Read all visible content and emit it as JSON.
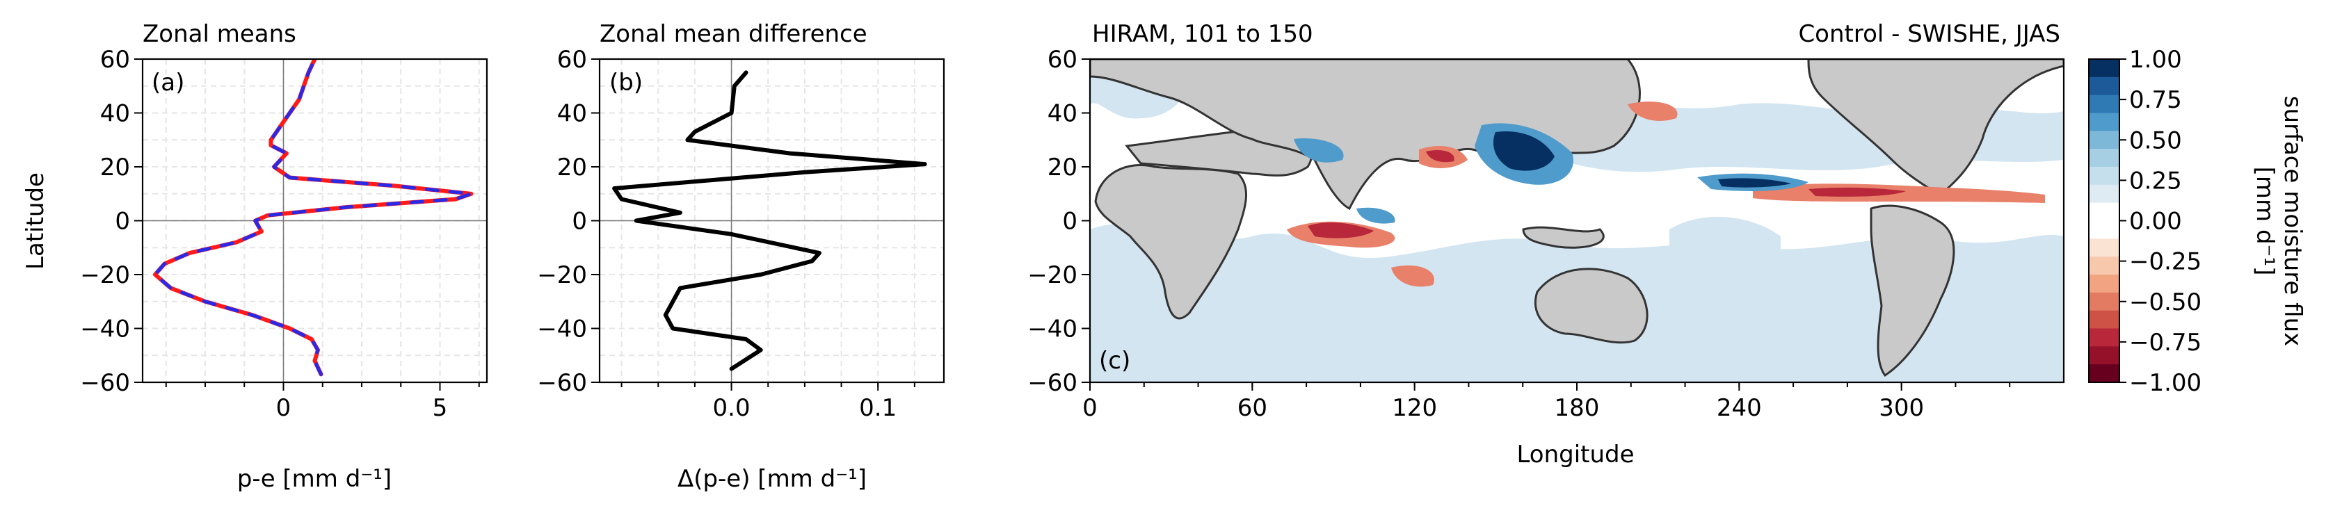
{
  "chart_data": [
    {
      "type": "line",
      "panel_label": "(a)",
      "title": "Zonal means",
      "xlabel": "p-e [mm d⁻¹]",
      "ylabel": "Latitude",
      "xlim": [
        -4.5,
        6.5
      ],
      "ylim": [
        -60,
        60
      ],
      "xticks": [
        0,
        5
      ],
      "yticks": [
        -60,
        -40,
        -20,
        0,
        20,
        40,
        60
      ],
      "grid": true,
      "series": [
        {
          "color": "#ff1a1a",
          "style": "solid",
          "x": [
            1.2,
            1.0,
            1.1,
            0.9,
            0.2,
            -1.0,
            -2.5,
            -3.6,
            -4.1,
            -3.8,
            -3.0,
            -1.5,
            -0.7,
            -0.9,
            -0.5,
            2.0,
            5.5,
            6.0,
            3.5,
            0.2,
            -0.3,
            0.1,
            -0.4,
            -0.4,
            -0.1,
            0.5,
            0.8,
            1.0
          ],
          "y": [
            -57,
            -52,
            -48,
            -44,
            -40,
            -35,
            -30,
            -25,
            -20,
            -16,
            -12,
            -8,
            -4,
            0,
            2,
            5,
            8,
            10,
            13,
            16,
            20,
            25,
            28,
            30,
            35,
            45,
            55,
            60
          ]
        },
        {
          "color": "#2a2ae6",
          "style": "dashed",
          "x": [
            1.2,
            1.0,
            1.1,
            0.9,
            0.2,
            -1.0,
            -2.5,
            -3.6,
            -4.1,
            -3.8,
            -3.0,
            -1.5,
            -0.7,
            -0.9,
            -0.5,
            2.0,
            5.5,
            6.0,
            3.5,
            0.2,
            -0.3,
            0.1,
            -0.4,
            -0.4,
            -0.1,
            0.5,
            0.8,
            1.0
          ],
          "y": [
            -57,
            -52,
            -48,
            -44,
            -40,
            -35,
            -30,
            -25,
            -20,
            -16,
            -12,
            -8,
            -4,
            0,
            2,
            5,
            8,
            10,
            13,
            16,
            20,
            25,
            28,
            30,
            35,
            45,
            55,
            60
          ]
        }
      ]
    },
    {
      "type": "line",
      "panel_label": "(b)",
      "title": "Zonal mean difference",
      "xlabel": "Δ(p-e) [mm d⁻¹]",
      "xlim": [
        -0.09,
        0.145
      ],
      "ylim": [
        -60,
        60
      ],
      "xticks": [
        0.0,
        0.1
      ],
      "xticklabels": [
        "0.0",
        "0.1"
      ],
      "yticks": [
        -60,
        -40,
        -20,
        0,
        20,
        40,
        60
      ],
      "grid": true,
      "series": [
        {
          "color": "#000000",
          "style": "solid",
          "x": [
            0.0,
            0.02,
            0.01,
            -0.04,
            -0.045,
            -0.035,
            0.02,
            0.055,
            0.06,
            0.0,
            -0.065,
            -0.035,
            -0.075,
            -0.08,
            0.05,
            0.132,
            0.04,
            -0.03,
            -0.025,
            0.0,
            0.002,
            0.01
          ],
          "y": [
            -55,
            -48,
            -44,
            -40,
            -35,
            -25,
            -20,
            -15,
            -12,
            -5,
            0,
            3,
            8,
            12,
            18,
            21,
            25,
            30,
            33,
            40,
            50,
            55
          ]
        }
      ]
    },
    {
      "type": "heatmap",
      "panel_label": "(c)",
      "title": "HIRAM, 101 to 150",
      "title_right": "Control - SWISHE, JJAS",
      "xlabel": "Longitude",
      "xlim": [
        0,
        360
      ],
      "ylim": [
        -60,
        60
      ],
      "xticks": [
        0,
        60,
        120,
        180,
        240,
        300
      ],
      "yticks": [
        -60,
        -40,
        -20,
        0,
        20,
        40,
        60
      ],
      "colorbar": {
        "label": "surface moisture flux\n[mm d⁻¹]",
        "range": [
          -1.0,
          1.0
        ],
        "ticks": [
          1.0,
          0.75,
          0.5,
          0.25,
          0.0,
          -0.25,
          -0.5,
          -0.75,
          -1.0
        ],
        "ticklabels": [
          "1.00",
          "0.75",
          "0.50",
          "0.25",
          "0.00",
          "−0.25",
          "−0.50",
          "−0.75",
          "−1.00"
        ],
        "colors_top_to_bottom": [
          "#053061",
          "#1d5a9a",
          "#2f79b5",
          "#4f9bcb",
          "#7eb8d9",
          "#a7cfe4",
          "#c5dfed",
          "#deebf3",
          "#ffffff",
          "#ffffff",
          "#fbe3d4",
          "#f8c8ad",
          "#f2a482",
          "#e27b62",
          "#cf5246",
          "#b8273a",
          "#95112a",
          "#67001f"
        ]
      }
    }
  ],
  "colors": {
    "land": "#c9c9c9",
    "axes": "#000000",
    "grid": "#e6e6e6"
  }
}
